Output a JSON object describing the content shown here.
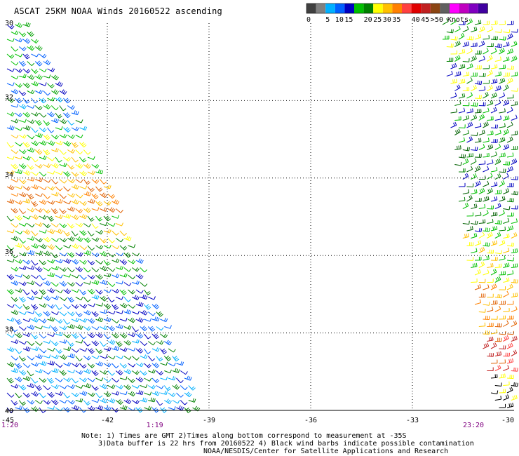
{
  "title": "ASCAT 25KM NOAA Winds 20160522 ascending",
  "legend": {
    "colors": [
      "#404040",
      "#808080",
      "#00b0ff",
      "#0060ff",
      "#0000c0",
      "#00c000",
      "#008000",
      "#ffff00",
      "#ffc000",
      "#ff8000",
      "#ff4040",
      "#e00000",
      "#c02020",
      "#8b4513",
      "#606060",
      "#ff00ff",
      "#c000c0",
      "#8000c0",
      "#4000a0"
    ],
    "labels": [
      {
        "text": "0",
        "at": 0
      },
      {
        "text": "5",
        "at": 2
      },
      {
        "text": "10",
        "at": 3
      },
      {
        "text": "15",
        "at": 4
      },
      {
        "text": "20",
        "at": 6
      },
      {
        "text": "25",
        "at": 7
      },
      {
        "text": "30",
        "at": 8
      },
      {
        "text": "35",
        "at": 9
      },
      {
        "text": "40",
        "at": 11
      },
      {
        "text": "45",
        "at": 12
      },
      {
        "text": ">50 Knots",
        "at": 13
      }
    ]
  },
  "map": {
    "lon_range": [
      -45,
      -30
    ],
    "lat_range": [
      -40,
      -30
    ],
    "lon_ticks": [
      {
        "value": -45,
        "label": "-45"
      },
      {
        "value": -42,
        "label": "-42"
      },
      {
        "value": -39,
        "label": "-39"
      },
      {
        "value": -36,
        "label": "-36"
      },
      {
        "value": -33,
        "label": "-33"
      },
      {
        "value": -30,
        "label": "-30"
      }
    ],
    "lat_ticks": [
      {
        "value": -30,
        "label": "30"
      },
      {
        "value": -32,
        "label": "32"
      },
      {
        "value": -34,
        "label": "34"
      },
      {
        "value": -36,
        "label": "36"
      },
      {
        "value": -38,
        "label": "38"
      },
      {
        "value": -40,
        "label": "40"
      }
    ],
    "gridlines": true,
    "pass_times": [
      {
        "label": "1:20",
        "lon": -45
      },
      {
        "label": "1:19",
        "lon": -40.6
      },
      {
        "label": "23:20",
        "lon": -31.2
      }
    ],
    "swaths": [
      {
        "name": "west",
        "polygon_lonlat": [
          [
            -45,
            -30
          ],
          [
            -44.3,
            -30
          ],
          [
            -42.2,
            -33.8
          ],
          [
            -39.3,
            -40
          ],
          [
            -45,
            -40
          ]
        ],
        "wind_bands": [
          {
            "lat_from": -30,
            "lat_to": -31.9,
            "colors": [
              "#00a000",
              "#0060ff",
              "#0000c0",
              "#00c000"
            ]
          },
          {
            "lat_from": -31.9,
            "lat_to": -32.8,
            "colors": [
              "#00b0ff",
              "#0060ff",
              "#00c000",
              "#008000"
            ]
          },
          {
            "lat_from": -32.8,
            "lat_to": -33.9,
            "colors": [
              "#ffff00",
              "#ffc000",
              "#00c000"
            ]
          },
          {
            "lat_from": -33.9,
            "lat_to": -34.9,
            "colors": [
              "#ff8000",
              "#ffc000",
              "#e06000"
            ]
          },
          {
            "lat_from": -34.9,
            "lat_to": -35.8,
            "colors": [
              "#008000",
              "#00c000",
              "#ffc000",
              "#ffff00"
            ]
          },
          {
            "lat_from": -35.8,
            "lat_to": -37.0,
            "colors": [
              "#0000c0",
              "#0060ff",
              "#00c000",
              "#008000"
            ]
          },
          {
            "lat_from": -37.0,
            "lat_to": -40.0,
            "colors": [
              "#0000c0",
              "#0060ff",
              "#00b0ff",
              "#008000"
            ]
          }
        ]
      },
      {
        "name": "east",
        "polygon_lonlat": [
          [
            -32.2,
            -30
          ],
          [
            -30,
            -30
          ],
          [
            -30,
            -40
          ],
          [
            -30.6,
            -40
          ],
          [
            -31.5,
            -35.8
          ]
        ],
        "wind_bands": [
          {
            "lat_from": -30,
            "lat_to": -32.0,
            "colors": [
              "#00c000",
              "#008000",
              "#0000c0",
              "#ffff00"
            ]
          },
          {
            "lat_from": -32.0,
            "lat_to": -35.5,
            "colors": [
              "#008000",
              "#00c000",
              "#006000",
              "#0000c0"
            ]
          },
          {
            "lat_from": -35.5,
            "lat_to": -36.7,
            "colors": [
              "#ffc000",
              "#ffff00",
              "#00c000"
            ]
          },
          {
            "lat_from": -36.7,
            "lat_to": -38.2,
            "colors": [
              "#ff8000",
              "#e06000",
              "#ffc000"
            ]
          },
          {
            "lat_from": -38.2,
            "lat_to": -39.0,
            "colors": [
              "#c02020",
              "#ff4040",
              "#e06000"
            ]
          },
          {
            "lat_from": -39.0,
            "lat_to": -40.0,
            "colors": [
              "#ffff00",
              "#000000",
              "#ffc000"
            ]
          }
        ]
      }
    ]
  },
  "notes": {
    "line1": "Note: 1) Times are GMT 2)Times along bottom correspond to measurement at -35S",
    "line2": "3)Data buffer is 22 hrs from 20160522 4) Black wind barbs indicate possible contamination",
    "line3": "NOAA/NESDIS/Center for Satellite Applications and Research"
  }
}
